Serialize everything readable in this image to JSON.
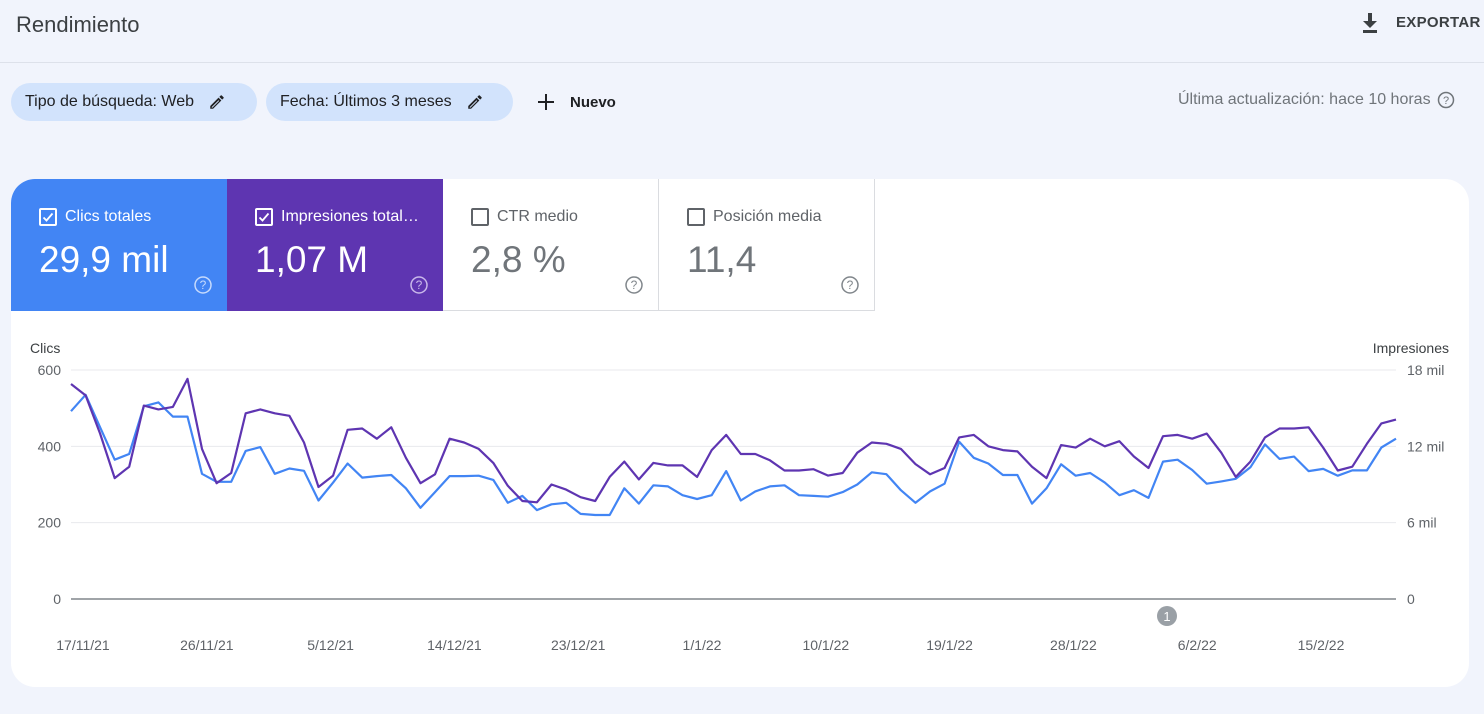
{
  "header": {
    "title": "Rendimiento",
    "export_label": "EXPORTAR"
  },
  "filters": {
    "search_type": "Tipo de búsqueda: Web",
    "date": "Fecha: Últimos 3 meses",
    "new_label": "Nuevo",
    "last_update": "Última actualización: hace 10 horas"
  },
  "metrics": [
    {
      "label": "Clics totales",
      "value": "29,9 mil",
      "checked": true,
      "color": "#4285f4"
    },
    {
      "label": "Impresiones total…",
      "value": "1,07 M",
      "checked": true,
      "color": "#5e35b1"
    },
    {
      "label": "CTR medio",
      "value": "2,8 %",
      "checked": false
    },
    {
      "label": "Posición media",
      "value": "11,4",
      "checked": false
    }
  ],
  "chart_data": {
    "type": "line",
    "left_axis_label": "Clics",
    "right_axis_label": "Impresiones",
    "left_ticks": [
      "600",
      "400",
      "200",
      "0"
    ],
    "right_ticks": [
      "18 mil",
      "12 mil",
      "6 mil",
      "0"
    ],
    "left_ylim": [
      0,
      600
    ],
    "right_ylim": [
      0,
      18000
    ],
    "x_labels": [
      "17/11/21",
      "26/11/21",
      "5/12/21",
      "14/12/21",
      "23/12/21",
      "1/1/22",
      "10/1/22",
      "19/1/22",
      "28/1/22",
      "6/2/22",
      "15/2/22"
    ],
    "annotation": "1",
    "series": [
      {
        "name": "Clics",
        "axis": "left",
        "color": "#4285f4",
        "values": [
          492,
          535,
          450,
          365,
          380,
          505,
          515,
          478,
          478,
          328,
          307,
          307,
          388,
          398,
          328,
          342,
          336,
          258,
          305,
          355,
          318,
          322,
          325,
          290,
          239,
          280,
          322,
          322,
          323,
          312,
          252,
          270,
          233,
          248,
          252,
          223,
          220,
          220,
          290,
          250,
          298,
          295,
          272,
          262,
          272,
          335,
          258,
          282,
          295,
          298,
          272,
          270,
          268,
          280,
          300,
          332,
          327,
          285,
          252,
          282,
          302,
          412,
          370,
          355,
          325,
          325,
          250,
          290,
          353,
          323,
          330,
          305,
          272,
          285,
          265,
          360,
          365,
          338,
          302,
          308,
          315,
          345,
          405,
          367,
          373,
          335,
          341,
          323,
          337,
          337,
          397,
          420
        ]
      },
      {
        "name": "Impresiones",
        "axis": "right",
        "color": "#5e35b1",
        "values": [
          16900,
          16000,
          13000,
          9500,
          10400,
          15200,
          14900,
          15100,
          17300,
          11800,
          9100,
          9900,
          14600,
          14900,
          14600,
          14400,
          12300,
          8800,
          9700,
          13300,
          13400,
          12600,
          13500,
          11100,
          9100,
          9800,
          12600,
          12300,
          11800,
          10700,
          8900,
          7700,
          7600,
          9000,
          8600,
          8000,
          7700,
          9600,
          10800,
          9400,
          10700,
          10500,
          10500,
          9600,
          11700,
          12900,
          11400,
          11400,
          10900,
          10100,
          10100,
          10200,
          9700,
          9900,
          11500,
          12300,
          12200,
          11800,
          10600,
          9800,
          10300,
          12700,
          12900,
          12000,
          11700,
          11600,
          10400,
          9500,
          12100,
          11900,
          12600,
          12000,
          12400,
          11200,
          10300,
          12800,
          12900,
          12600,
          13000,
          11500,
          9600,
          10800,
          12700,
          13400,
          13400,
          13500,
          11900,
          10100,
          10400,
          12200,
          13800,
          14100
        ]
      }
    ]
  }
}
